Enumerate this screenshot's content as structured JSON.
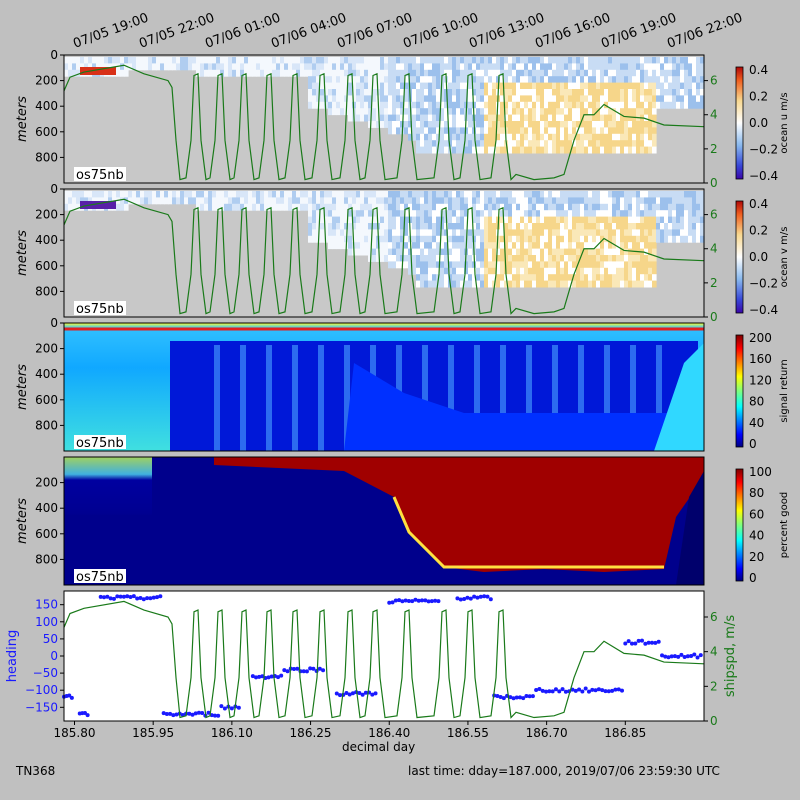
{
  "top_time_ticks": [
    "07/05 19:00",
    "07/05 22:00",
    "07/06 01:00",
    "07/06 04:00",
    "07/06 07:00",
    "07/06 10:00",
    "07/06 13:00",
    "07/06 16:00",
    "07/06 19:00",
    "07/06 22:00"
  ],
  "footer": {
    "cruise": "TN368",
    "last_time": "last time: dday=187.000,  2019/07/06 23:59:30 UTC"
  },
  "xlabel": "decimal day",
  "chart_data": [
    {
      "type": "heatmap",
      "ylabel": "meters",
      "inset_label": "os75nb",
      "y_ticks": [
        "0",
        "200",
        "400",
        "600",
        "800"
      ],
      "ylim": [
        1000,
        0
      ],
      "colorbar": {
        "label": "ocean u m/s",
        "ticks": [
          "0.4",
          "0.2",
          "0.0",
          "−0.2",
          "−0.4"
        ],
        "range": [
          -0.4,
          0.4
        ]
      },
      "right_ticks": [
        "0",
        "2",
        "4",
        "6"
      ],
      "ship_speed_overlay": true
    },
    {
      "type": "heatmap",
      "ylabel": "meters",
      "inset_label": "os75nb",
      "y_ticks": [
        "0",
        "200",
        "400",
        "600",
        "800"
      ],
      "ylim": [
        1000,
        0
      ],
      "colorbar": {
        "label": "ocean v m/s",
        "ticks": [
          "0.4",
          "0.2",
          "0.0",
          "−0.2",
          "−0.4"
        ],
        "range": [
          -0.4,
          0.4
        ]
      },
      "right_ticks": [
        "0",
        "2",
        "4",
        "6"
      ],
      "ship_speed_overlay": true
    },
    {
      "type": "heatmap",
      "ylabel": "meters",
      "inset_label": "os75nb",
      "y_ticks": [
        "0",
        "200",
        "400",
        "600",
        "800"
      ],
      "ylim": [
        1000,
        0
      ],
      "colorbar": {
        "label": "signal return",
        "ticks": [
          "200",
          "160",
          "120",
          "80",
          "40",
          "0"
        ],
        "range": [
          0,
          200
        ]
      }
    },
    {
      "type": "heatmap",
      "ylabel": "meters",
      "inset_label": "os75nb",
      "y_ticks": [
        "200",
        "400",
        "600",
        "800"
      ],
      "ylim": [
        1000,
        0
      ],
      "colorbar": {
        "label": "percent good",
        "ticks": [
          "100",
          "80",
          "60",
          "40",
          "20",
          "0"
        ],
        "range": [
          0,
          100
        ]
      }
    },
    {
      "type": "scatter",
      "ylabel_left": "heading",
      "ylabel_right": "shipspd, m/s",
      "y_ticks_left": [
        "150",
        "100",
        "50",
        "0",
        "−50",
        "−100",
        "−150"
      ],
      "right_ticks": [
        "0",
        "2",
        "4",
        "6"
      ],
      "x_ticks": [
        "185.80",
        "185.95",
        "186.10",
        "186.25",
        "186.40",
        "186.55",
        "186.70",
        "186.85"
      ],
      "xlim": [
        185.78,
        187.0
      ],
      "heading_ylim": [
        -190,
        190
      ],
      "shipspd_ylim": [
        0,
        7.5
      ],
      "heading_color": "#1a1aff",
      "shipspd_color": "#1a7a1a"
    }
  ]
}
